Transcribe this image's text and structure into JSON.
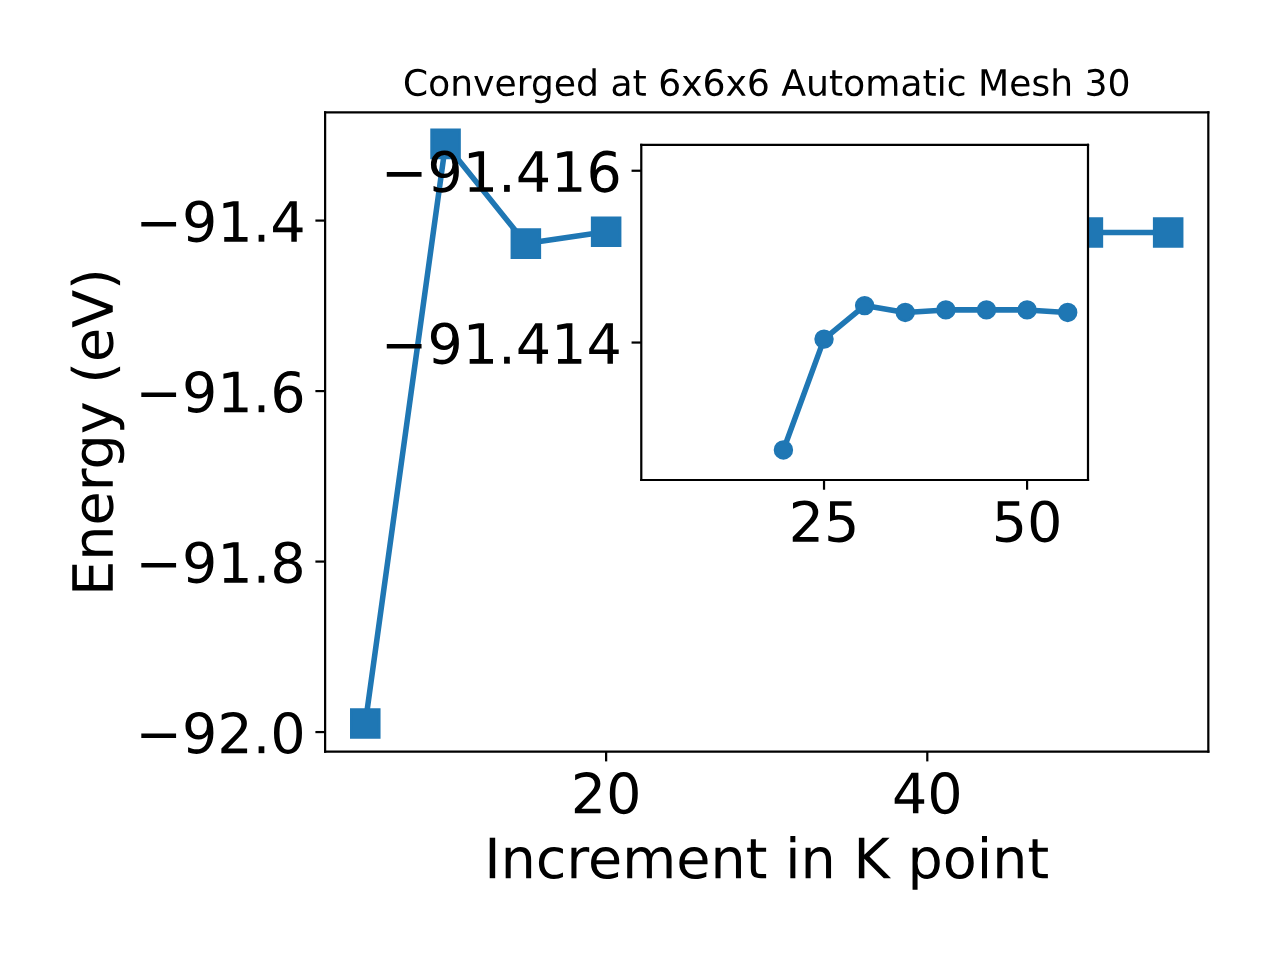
{
  "chart_data": [
    {
      "type": "line",
      "title": "Converged at 6x6x6 Automatic Mesh 30",
      "xlabel": "Increment in K point",
      "ylabel": "Energy (eV)",
      "marker": "square",
      "line_style": "solid",
      "grid": false,
      "legend": false,
      "x": [
        5,
        10,
        15,
        20,
        25,
        30,
        35,
        40,
        45,
        50,
        55
      ],
      "series": [
        {
          "color": "#1f77b4",
          "values": [
            -91.99,
            -91.31,
            -91.427,
            -91.413,
            null,
            null,
            null,
            null,
            null,
            -91.414,
            -91.414
          ]
        }
      ],
      "xlim": [
        2.5,
        57.5
      ],
      "ylim": [
        -92.023,
        -91.273
      ],
      "xticks": [
        20,
        40
      ],
      "yticks": [
        {
          "value": -92.0,
          "label": "−92.0"
        },
        {
          "value": -91.8,
          "label": "−91.8"
        },
        {
          "value": -91.6,
          "label": "−91.6"
        },
        {
          "value": -91.4,
          "label": "−91.4"
        }
      ]
    },
    {
      "type": "line",
      "marker": "circle",
      "line_style": "solid",
      "grid": false,
      "legend": false,
      "x": [
        20,
        25,
        30,
        35,
        40,
        45,
        50,
        55
      ],
      "series": [
        {
          "color": "#1f77b4",
          "values": [
            -91.41275,
            -91.41404,
            -91.41443,
            -91.41435,
            -91.41438,
            -91.41438,
            -91.41438,
            -91.41435
          ]
        }
      ],
      "xlim": [
        2.5,
        57.5
      ],
      "ylim": [
        -91.4124,
        -91.4163
      ],
      "xticks": [
        25,
        50
      ],
      "yticks": [
        {
          "value": -91.416,
          "label": "−91.416"
        },
        {
          "value": -91.414,
          "label": "−91.414"
        }
      ]
    }
  ]
}
